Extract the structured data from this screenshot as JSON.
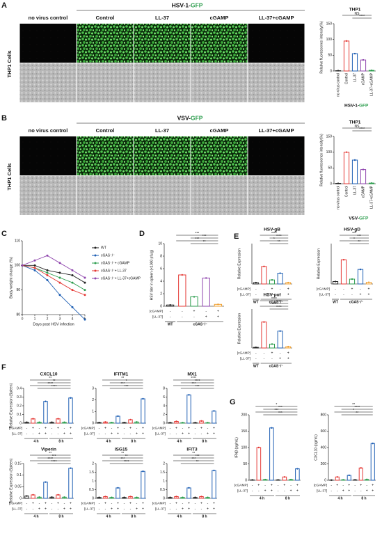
{
  "figure": {
    "letters": [
      "A",
      "B",
      "C",
      "D",
      "E",
      "F",
      "G"
    ],
    "A": {
      "header": "HSV-1-",
      "header_highlight": "GFP",
      "columns": [
        "no virus control",
        "Control",
        "LL-37",
        "cGAMP",
        "LL-37+cGAMP"
      ],
      "row_label": "THP1 Cells"
    },
    "B": {
      "header": "VSV-",
      "header_highlight": "GFP",
      "columns": [
        "no virus control",
        "Control",
        "LL-37",
        "cGAMP",
        "LL-37+cGAMP"
      ],
      "row_label": "THP1 Cells"
    }
  },
  "chart_data": [
    {
      "type": "bar",
      "title": "THP1",
      "ylabel": "Relative fluorescence intensity(%)",
      "xlabel": "HSV-1-",
      "xlabel_highlight": "GFP",
      "categories": [
        "no virus control",
        "Control",
        "LL-37",
        "cGAMP",
        "LL-37+cGAMP"
      ],
      "values": [
        1,
        95,
        55,
        35,
        2
      ],
      "colors": [
        "#222",
        "#e53935",
        "#1e5fb4",
        "#8e44ad",
        "#2e9e4f"
      ],
      "ylim": [
        0,
        150
      ],
      "yticks": [
        0,
        50,
        100,
        150
      ],
      "annotations": [
        "NS",
        "****"
      ]
    },
    {
      "type": "bar",
      "title": "THP1",
      "ylabel": "Relative fluorescence intensity(%)",
      "xlabel": "VSV-",
      "xlabel_highlight": "GFP",
      "categories": [
        "no virus control",
        "Control",
        "LL-37",
        "cGAMP",
        "LL-37+cGAMP"
      ],
      "values": [
        1,
        100,
        75,
        45,
        2
      ],
      "colors": [
        "#222",
        "#e53935",
        "#1e5fb4",
        "#8e44ad",
        "#2e9e4f"
      ],
      "ylim": [
        0,
        150
      ],
      "yticks": [
        0,
        50,
        100,
        150
      ],
      "annotations": [
        "NS",
        "****"
      ]
    },
    {
      "type": "line",
      "ylabel": "Body weight change (%)",
      "xlabel": "Days post HSV infection",
      "x": [
        0,
        1,
        2,
        3,
        4,
        5
      ],
      "xlim": [
        0,
        5
      ],
      "xticks": [
        0,
        1,
        2,
        3,
        4,
        5
      ],
      "ylim": [
        80,
        110
      ],
      "yticks": [
        80,
        90,
        100,
        110
      ],
      "series": [
        {
          "name": "WT",
          "color": "#222",
          "values": [
            100,
            100,
            98,
            97,
            96,
            93
          ]
        },
        {
          "name": "cGAS⁻/⁻",
          "color": "#1e5fb4",
          "values": [
            100,
            98,
            94,
            88,
            83,
            78
          ]
        },
        {
          "name": "cGAS⁻/⁻+ cGAMP",
          "color": "#2e9e4f",
          "values": [
            100,
            99,
            97,
            95,
            93,
            90
          ]
        },
        {
          "name": "cGAS⁻/⁻+ LL-37",
          "color": "#e53935",
          "values": [
            100,
            99,
            96,
            93,
            90,
            88
          ]
        },
        {
          "name": "cGAS⁻/⁻+ LL-37+cGAMP",
          "color": "#8e44ad",
          "values": [
            100,
            102,
            104,
            101,
            98,
            95
          ]
        }
      ]
    },
    {
      "type": "bar",
      "ylabel": "HSV titer in spleen (×1000 pfu/g)",
      "values": [
        0.2,
        5,
        1.5,
        4.5,
        0.3
      ],
      "colors": [
        "#222",
        "#e53935",
        "#2e9e4f",
        "#8e44ad",
        "#f0a030"
      ],
      "ylim": [
        0,
        10
      ],
      "yticks": [
        0,
        2,
        4,
        6,
        8,
        10
      ],
      "conditions": [
        {
          "name": "[cGAMP]",
          "signs": [
            "-",
            "-",
            "+",
            "-",
            "+"
          ]
        },
        {
          "name": "[LL-37]",
          "signs": [
            "-",
            "-",
            "-",
            "+",
            "+"
          ]
        }
      ],
      "groups": [
        "WT",
        "cGAS⁻/⁻"
      ],
      "annotations": [
        "***",
        "***",
        "***",
        "**"
      ]
    },
    {
      "type": "bar",
      "title": "HSV-gB",
      "ylabel": "Relative Expression",
      "values": [
        0.5,
        6.5,
        1.5,
        4,
        0.5
      ],
      "colors": [
        "#222",
        "#e53935",
        "#2e9e4f",
        "#1e5fb4",
        "#f0a030"
      ],
      "ylim": [
        0,
        15
      ],
      "conditions": [
        {
          "name": "[cGAMP]",
          "signs": [
            "-",
            "-",
            "+",
            "-",
            "+"
          ]
        },
        {
          "name": "[LL-37]",
          "signs": [
            "-",
            "-",
            "-",
            "+",
            "+"
          ]
        }
      ],
      "groups": [
        "WT",
        "cGAS⁻/⁻"
      ],
      "annotations": [
        "****",
        "****",
        "*",
        "**"
      ]
    },
    {
      "type": "bar",
      "title": "HSV-gD",
      "ylabel": "Relative Expression",
      "values": [
        0.3,
        3,
        0.6,
        1.8,
        0.2
      ],
      "colors": [
        "#222",
        "#e53935",
        "#2e9e4f",
        "#1e5fb4",
        "#f0a030"
      ],
      "ylim": [
        0,
        5
      ],
      "conditions": [
        {
          "name": "[cGAMP]",
          "signs": [
            "-",
            "-",
            "+",
            "-",
            "+"
          ]
        },
        {
          "name": "[LL-37]",
          "signs": [
            "-",
            "-",
            "-",
            "+",
            "+"
          ]
        }
      ],
      "groups": [
        "WT",
        "cGAS⁻/⁻"
      ],
      "annotations": [
        "***",
        "***",
        "*",
        "**"
      ]
    },
    {
      "type": "bar",
      "title": "HSV-pol",
      "ylabel": "Relative Expression",
      "values": [
        0.5,
        20,
        3,
        13,
        1
      ],
      "colors": [
        "#222",
        "#e53935",
        "#2e9e4f",
        "#1e5fb4",
        "#f0a030"
      ],
      "ylim": [
        0,
        30
      ],
      "conditions": [
        {
          "name": "[cGAMP]",
          "signs": [
            "-",
            "-",
            "+",
            "-",
            "+"
          ]
        },
        {
          "name": "[LL-37]",
          "signs": [
            "-",
            "-",
            "-",
            "+",
            "+"
          ]
        }
      ],
      "groups": [
        "WT",
        "cGAS⁻/⁻"
      ],
      "annotations": [
        "****",
        "****",
        "***",
        "****"
      ]
    },
    {
      "type": "bar",
      "title": "CXCL10",
      "ylabel": "Relative Expression (Spleen)",
      "values": [
        0.01,
        0.05,
        0.01,
        0.25,
        0.01,
        0.05,
        0.01,
        0.29
      ],
      "colors": [
        "#222",
        "#e53935",
        "#2e9e4f",
        "#1e5fb4",
        "#222",
        "#e53935",
        "#2e9e4f",
        "#1e5fb4"
      ],
      "ylim": [
        0,
        0.4
      ],
      "yticks": [
        0,
        0.1,
        0.2,
        0.3,
        0.4
      ],
      "conditions": [
        {
          "name": "[cGAMP]",
          "signs": [
            "-",
            "+",
            "-",
            "+",
            "-",
            "+",
            "-",
            "+"
          ]
        },
        {
          "name": "[LL-37]",
          "signs": [
            "-",
            "-",
            "+",
            "+",
            "-",
            "-",
            "+",
            "+"
          ]
        }
      ],
      "groups": [
        "4 h",
        "8 h"
      ],
      "annotations": [
        "**",
        "**",
        "****",
        "****"
      ]
    },
    {
      "type": "bar",
      "title": "IFITM1",
      "values": [
        0.05,
        0.1,
        0.05,
        0.6,
        0.05,
        0.3,
        0.1,
        2.1
      ],
      "colors": [
        "#222",
        "#e53935",
        "#2e9e4f",
        "#1e5fb4",
        "#222",
        "#e53935",
        "#2e9e4f",
        "#1e5fb4"
      ],
      "ylim": [
        0,
        3
      ],
      "yticks": [
        0,
        1,
        2,
        3
      ],
      "conditions": [
        {
          "name": "[cGAMP]",
          "signs": [
            "-",
            "+",
            "-",
            "+",
            "-",
            "+",
            "-",
            "+"
          ]
        },
        {
          "name": "[LL-37]",
          "signs": [
            "-",
            "-",
            "+",
            "+",
            "-",
            "-",
            "+",
            "+"
          ]
        }
      ],
      "groups": [
        "4 h",
        "8 h"
      ],
      "annotations": [
        "**",
        "*",
        "***",
        "***"
      ]
    },
    {
      "type": "bar",
      "title": "MX1",
      "values": [
        0.1,
        0.4,
        0.1,
        6.5,
        0.1,
        0.5,
        0.1,
        2.8
      ],
      "colors": [
        "#222",
        "#e53935",
        "#2e9e4f",
        "#1e5fb4",
        "#222",
        "#e53935",
        "#2e9e4f",
        "#1e5fb4"
      ],
      "ylim": [
        0,
        8
      ],
      "yticks": [
        0,
        2,
        4,
        6,
        8
      ],
      "conditions": [
        {
          "name": "[cGAMP]",
          "signs": [
            "-",
            "+",
            "-",
            "+",
            "-",
            "+",
            "-",
            "+"
          ]
        },
        {
          "name": "[LL-37]",
          "signs": [
            "-",
            "-",
            "+",
            "+",
            "-",
            "-",
            "+",
            "+"
          ]
        }
      ],
      "groups": [
        "4 h",
        "8 h"
      ],
      "annotations": [
        "****",
        "****",
        "***",
        "***"
      ]
    },
    {
      "type": "bar",
      "title": "Viperin",
      "ylabel": "Relative Expression (Spleen)",
      "values": [
        0.01,
        0.015,
        0.005,
        0.07,
        0.005,
        0.015,
        0.005,
        0.13
      ],
      "colors": [
        "#222",
        "#e53935",
        "#2e9e4f",
        "#1e5fb4",
        "#222",
        "#e53935",
        "#2e9e4f",
        "#1e5fb4"
      ],
      "ylim": [
        0,
        0.15
      ],
      "yticks": [
        0,
        0.05,
        0.1,
        0.15
      ],
      "conditions": [
        {
          "name": "[cGAMP]",
          "signs": [
            "-",
            "+",
            "-",
            "+",
            "-",
            "+",
            "-",
            "+"
          ]
        },
        {
          "name": "[LL-37]",
          "signs": [
            "-",
            "-",
            "+",
            "+",
            "-",
            "-",
            "+",
            "+"
          ]
        }
      ],
      "groups": [
        "4 h",
        "8 h"
      ],
      "annotations": [
        "**",
        "***",
        "****",
        "****"
      ]
    },
    {
      "type": "bar",
      "title": "ISG15",
      "values": [
        0.05,
        0.1,
        0.05,
        0.6,
        0.05,
        0.1,
        0.05,
        1.55
      ],
      "colors": [
        "#222",
        "#e53935",
        "#2e9e4f",
        "#1e5fb4",
        "#222",
        "#e53935",
        "#2e9e4f",
        "#1e5fb4"
      ],
      "ylim": [
        0,
        2
      ],
      "yticks": [
        0,
        0.5,
        1,
        1.5,
        2
      ],
      "conditions": [
        {
          "name": "[cGAMP]",
          "signs": [
            "-",
            "+",
            "-",
            "+",
            "-",
            "+",
            "-",
            "+"
          ]
        },
        {
          "name": "[LL-37]",
          "signs": [
            "-",
            "-",
            "+",
            "+",
            "-",
            "-",
            "+",
            "+"
          ]
        }
      ],
      "groups": [
        "4 h",
        "8 h"
      ],
      "annotations": [
        "**",
        "**",
        "***",
        "****"
      ]
    },
    {
      "type": "bar",
      "title": "IFIT3",
      "values": [
        0.05,
        0.1,
        0.05,
        0.6,
        0.05,
        0.1,
        0.05,
        1.6
      ],
      "colors": [
        "#222",
        "#e53935",
        "#2e9e4f",
        "#1e5fb4",
        "#222",
        "#e53935",
        "#2e9e4f",
        "#1e5fb4"
      ],
      "ylim": [
        0,
        2
      ],
      "yticks": [
        0,
        0.5,
        1,
        1.5,
        2
      ],
      "conditions": [
        {
          "name": "[cGAMP]",
          "signs": [
            "-",
            "+",
            "-",
            "+",
            "-",
            "+",
            "-",
            "+"
          ]
        },
        {
          "name": "[LL-37]",
          "signs": [
            "-",
            "-",
            "+",
            "+",
            "-",
            "-",
            "+",
            "+"
          ]
        }
      ],
      "groups": [
        "4 h",
        "8 h"
      ],
      "annotations": [
        "**",
        "***",
        "***",
        "**"
      ]
    },
    {
      "type": "bar",
      "ylabel": "IFNβ (pg/mL)",
      "values": [
        1,
        100,
        2,
        160,
        1,
        10,
        2,
        35
      ],
      "colors": [
        "#222",
        "#e53935",
        "#2e9e4f",
        "#1e5fb4",
        "#222",
        "#e53935",
        "#2e9e4f",
        "#1e5fb4"
      ],
      "ylim": [
        0,
        200
      ],
      "yticks": [
        0,
        50,
        100,
        150,
        200
      ],
      "conditions": [
        {
          "name": "[cGAMP]",
          "signs": [
            "-",
            "+",
            "-",
            "+",
            "-",
            "+",
            "-",
            "+"
          ]
        },
        {
          "name": "[LL-37]",
          "signs": [
            "-",
            "-",
            "+",
            "+",
            "-",
            "-",
            "+",
            "+"
          ]
        }
      ],
      "groups": [
        "4 h",
        "8 h"
      ],
      "annotations": [
        "*",
        "***",
        "***",
        "***"
      ]
    },
    {
      "type": "bar",
      "ylabel": "CXCL10 (pg/mL)",
      "values": [
        2,
        40,
        5,
        60,
        5,
        150,
        10,
        450
      ],
      "colors": [
        "#222",
        "#e53935",
        "#2e9e4f",
        "#1e5fb4",
        "#222",
        "#e53935",
        "#2e9e4f",
        "#1e5fb4"
      ],
      "ylim": [
        0,
        800
      ],
      "yticks": [
        0,
        200,
        400,
        600,
        800
      ],
      "conditions": [
        {
          "name": "[cGAMP]",
          "signs": [
            "-",
            "+",
            "-",
            "+",
            "-",
            "+",
            "-",
            "+"
          ]
        },
        {
          "name": "[LL-37]",
          "signs": [
            "-",
            "-",
            "+",
            "+",
            "-",
            "-",
            "+",
            "+"
          ]
        }
      ],
      "groups": [
        "4 h",
        "8 h"
      ],
      "annotations": [
        "**",
        "****",
        "*",
        "**"
      ]
    }
  ]
}
